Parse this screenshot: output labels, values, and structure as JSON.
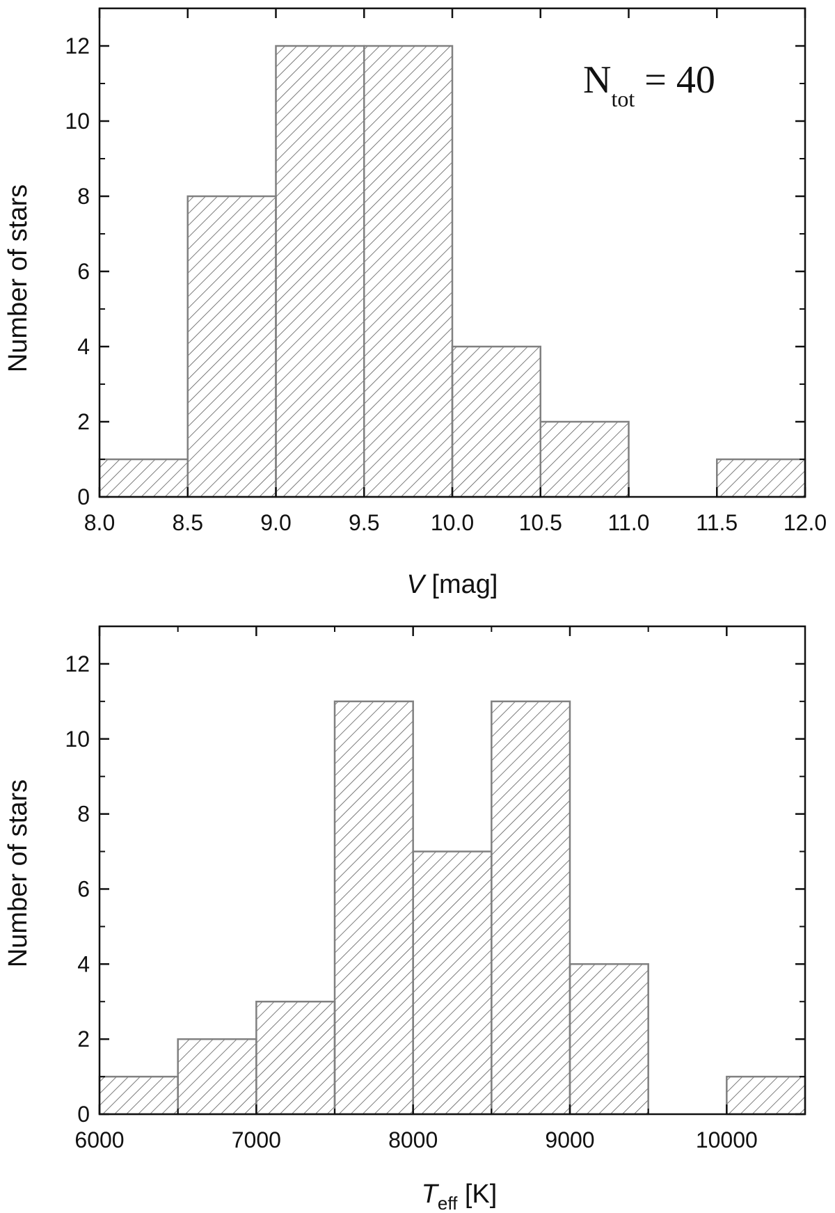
{
  "chart_data": [
    {
      "type": "bar",
      "bin_edges": [
        8.0,
        8.5,
        9.0,
        9.5,
        10.0,
        10.5,
        11.0,
        11.5,
        12.0
      ],
      "values": [
        1,
        8,
        12,
        12,
        4,
        2,
        0,
        1
      ],
      "xlim": [
        8.0,
        12.0
      ],
      "ylim": [
        0,
        13
      ],
      "xticks": [
        "8.0",
        "8.5",
        "9.0",
        "9.5",
        "10.0",
        "10.5",
        "11.0",
        "11.5",
        "12.0"
      ],
      "yticks": [
        "0",
        "2",
        "4",
        "6",
        "8",
        "10",
        "12"
      ],
      "xlabel": {
        "var": "V",
        "unit": " [mag]"
      },
      "ylabel": "Number of stars",
      "annotation": {
        "main": "N",
        "sub": "tot",
        "rest": " = 40"
      },
      "fill": "diagonal-hatch",
      "bar_color": "#808080"
    },
    {
      "type": "bar",
      "bin_edges": [
        6000,
        6500,
        7000,
        7500,
        8000,
        8500,
        9000,
        9500,
        10000,
        10500
      ],
      "values": [
        1,
        2,
        3,
        11,
        7,
        11,
        4,
        0,
        1
      ],
      "xlim": [
        6000,
        10500
      ],
      "ylim": [
        0,
        13
      ],
      "xticks": [
        "6000",
        "7000",
        "8000",
        "9000",
        "10000"
      ],
      "yticks": [
        "0",
        "2",
        "4",
        "6",
        "8",
        "10",
        "12"
      ],
      "xlabel": {
        "var": "T",
        "sub": "eff",
        "unit": " [K]"
      },
      "ylabel": "Number of stars",
      "fill": "diagonal-hatch",
      "bar_color": "#808080"
    }
  ]
}
